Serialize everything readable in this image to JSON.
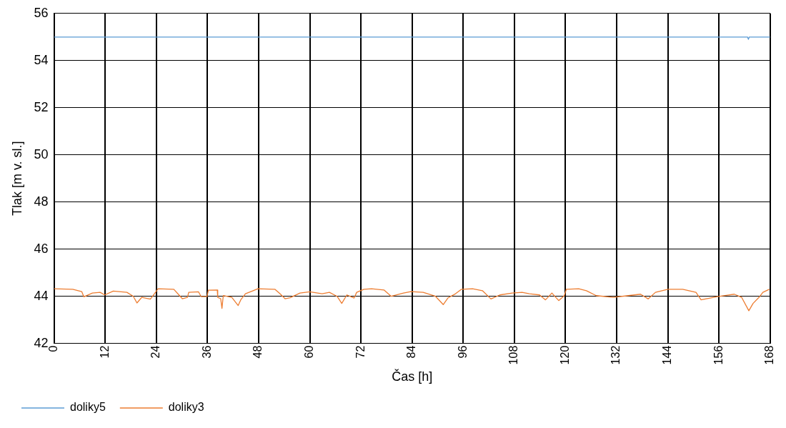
{
  "chart_data": {
    "type": "line",
    "xlabel": "Čas [h]",
    "ylabel": "Tlak [m v. sl.]",
    "xlim": [
      0,
      168
    ],
    "xticks": [
      0,
      12,
      24,
      36,
      48,
      60,
      72,
      84,
      96,
      108,
      120,
      132,
      144,
      156,
      168
    ],
    "ylim": [
      42,
      56
    ],
    "yticks": [
      42,
      44,
      46,
      48,
      50,
      52,
      54,
      56
    ],
    "grid": true,
    "legend": "bottom left",
    "marker": "none",
    "line_style": "solid",
    "series": [
      {
        "name": "doliky5",
        "color": "#5b9bd5",
        "x": [
          0,
          162.7,
          162.9,
          163.1,
          168
        ],
        "values": [
          55,
          55,
          54.9,
          55,
          55
        ]
      },
      {
        "name": "doliky3",
        "color": "#ed7d31",
        "x": [
          0,
          4.4,
          6.5,
          7.0,
          9.0,
          10.8,
          11.9,
          13.9,
          17.1,
          18.6,
          19.45,
          20.6,
          22.6,
          23.8,
          24.4,
          28.1,
          29.3,
          30.1,
          31.3,
          31.6,
          33.9,
          34.5,
          35.9,
          36.2,
          38.3,
          38.4,
          39.1,
          39.4,
          39.7,
          41.7,
          43.2,
          43.8,
          44.9,
          46.7,
          47.8,
          51.8,
          53.0,
          54.2,
          55.4,
          57.7,
          60.0,
          62.9,
          64.6,
          66.4,
          67.5,
          68.7,
          70.4,
          71.0,
          72.7,
          74.5,
          77.4,
          79.1,
          82.0,
          83.7,
          86.6,
          89.5,
          91.3,
          92.4,
          94.2,
          95.6,
          98.2,
          100.5,
          102.5,
          104.6,
          107.5,
          109.8,
          111.5,
          113.9,
          115.3,
          116.8,
          118.4,
          119.7,
          120.2,
          123.1,
          124.9,
          127.2,
          131.2,
          134.7,
          137.6,
          139.4,
          141.1,
          144.0,
          147.5,
          150.6,
          151.8,
          155.6,
          159.6,
          161.3,
          163.0,
          164.0,
          165.4,
          166.3,
          167.8
        ],
        "values": [
          44.32,
          44.3,
          44.2,
          43.98,
          44.14,
          44.17,
          44.06,
          44.22,
          44.17,
          44.0,
          43.72,
          43.96,
          43.88,
          44.17,
          44.32,
          44.3,
          44.06,
          43.9,
          43.96,
          44.17,
          44.19,
          43.99,
          43.99,
          44.26,
          44.27,
          43.96,
          43.9,
          43.49,
          44.03,
          43.96,
          43.61,
          43.85,
          44.11,
          44.24,
          44.32,
          44.3,
          44.11,
          43.9,
          43.94,
          44.14,
          44.19,
          44.11,
          44.17,
          44.0,
          43.7,
          44.06,
          43.93,
          44.17,
          44.3,
          44.32,
          44.27,
          44.0,
          44.14,
          44.2,
          44.17,
          44.0,
          43.65,
          43.93,
          44.11,
          44.3,
          44.32,
          44.24,
          43.89,
          44.06,
          44.14,
          44.17,
          44.11,
          44.06,
          43.85,
          44.14,
          43.82,
          44.03,
          44.3,
          44.32,
          44.24,
          44.03,
          43.96,
          44.03,
          44.09,
          43.89,
          44.17,
          44.3,
          44.3,
          44.17,
          43.85,
          43.99,
          44.09,
          43.96,
          43.39,
          43.7,
          43.96,
          44.17,
          44.3
        ]
      }
    ]
  }
}
